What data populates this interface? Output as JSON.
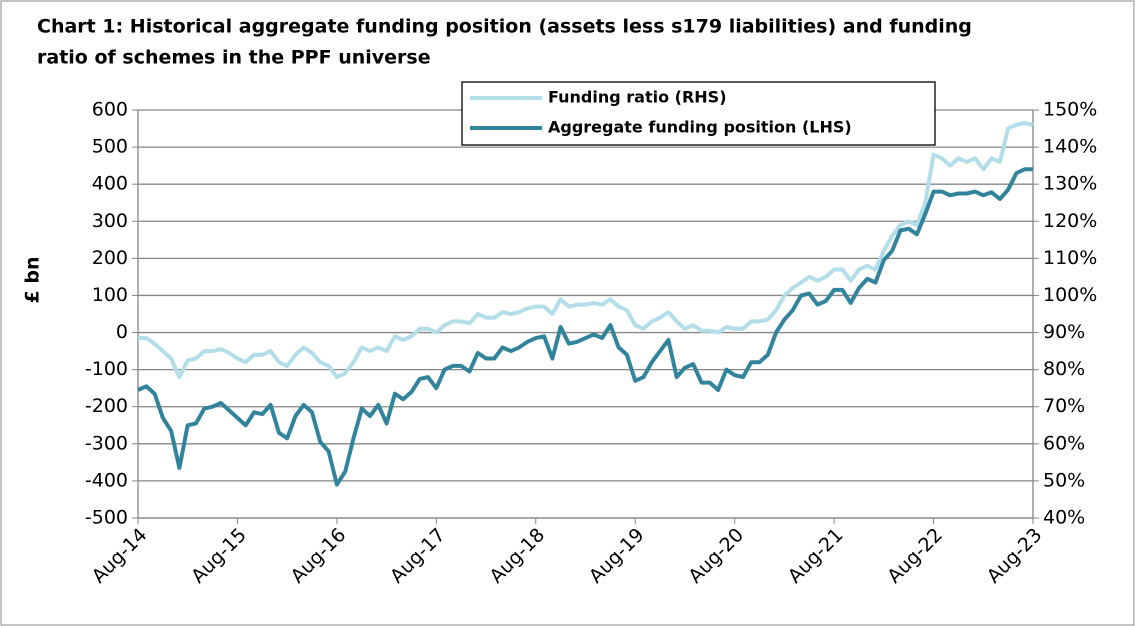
{
  "chart_data": {
    "type": "line",
    "title": [
      "Chart 1: Historical aggregate funding position (assets less s179 liabilities) and funding",
      "ratio of schemes in the PPF universe"
    ],
    "y_label": "£ bn",
    "legend": "upper center",
    "grid": true,
    "categories": [
      "Aug-14",
      null,
      null,
      null,
      null,
      null,
      null,
      null,
      null,
      null,
      null,
      null,
      "Aug-15",
      null,
      null,
      null,
      null,
      null,
      null,
      null,
      null,
      null,
      null,
      null,
      "Aug-16",
      null,
      null,
      null,
      null,
      null,
      null,
      null,
      null,
      null,
      null,
      null,
      "Aug-17",
      null,
      null,
      null,
      null,
      null,
      null,
      null,
      null,
      null,
      null,
      null,
      "Aug-18",
      null,
      null,
      null,
      null,
      null,
      null,
      null,
      null,
      null,
      null,
      null,
      "Aug-19",
      null,
      null,
      null,
      null,
      null,
      null,
      null,
      null,
      null,
      null,
      null,
      "Aug-20",
      null,
      null,
      null,
      null,
      null,
      null,
      null,
      null,
      null,
      null,
      null,
      "Aug-21",
      null,
      null,
      null,
      null,
      null,
      null,
      null,
      null,
      null,
      null,
      null,
      "Aug-22",
      null,
      null,
      null,
      null,
      null,
      null,
      null,
      null,
      null,
      null,
      null,
      "Aug-23"
    ],
    "ylim": [
      -500,
      600
    ],
    "yticks": [
      -500,
      -400,
      -300,
      -200,
      -100,
      0,
      100,
      200,
      300,
      400,
      500,
      600
    ],
    "y2lim": [
      40,
      150
    ],
    "y2ticks": [
      {
        "value": 40,
        "label": "40%"
      },
      {
        "value": 50,
        "label": "50%"
      },
      {
        "value": 60,
        "label": "60%"
      },
      {
        "value": 70,
        "label": "70%"
      },
      {
        "value": 80,
        "label": "80%"
      },
      {
        "value": 90,
        "label": "90%"
      },
      {
        "value": 100,
        "label": "100%"
      },
      {
        "value": 110,
        "label": "110%"
      },
      {
        "value": 120,
        "label": "120%"
      },
      {
        "value": 130,
        "label": "130%"
      },
      {
        "value": 140,
        "label": "140%"
      },
      {
        "value": 150,
        "label": "150%"
      }
    ],
    "series": [
      {
        "name": "Funding ratio (RHS)",
        "color": "#b3dde8",
        "axis": "y2",
        "values": [
          88.5,
          88.5,
          87,
          85,
          83,
          78,
          82.5,
          83,
          85,
          85,
          85.5,
          84.5,
          83,
          82,
          84,
          84,
          85,
          82,
          81,
          84,
          86,
          84.5,
          82,
          81,
          78,
          79,
          82,
          86,
          85,
          86,
          85,
          89,
          88,
          89,
          91,
          91,
          90,
          92,
          93,
          93,
          92.5,
          95,
          94,
          94,
          95.5,
          95,
          95.5,
          96.5,
          97,
          97,
          95,
          99,
          97,
          97.5,
          97.5,
          98,
          97.5,
          99,
          97,
          96,
          92,
          91,
          93,
          94,
          95.5,
          93,
          91,
          92,
          90.5,
          90.5,
          90,
          91.5,
          91,
          91,
          93,
          93,
          93.5,
          96,
          100,
          102,
          103.5,
          105,
          104,
          105,
          107,
          107,
          104,
          107,
          108,
          107,
          112,
          116,
          119,
          120,
          119,
          125,
          138,
          137,
          135,
          137,
          136,
          137,
          134,
          137,
          136,
          145,
          146,
          146.5,
          146
        ]
      },
      {
        "name": "Aggregate funding position (LHS)",
        "color": "#31849b",
        "values": [
          -155,
          -145,
          -165,
          -230,
          -265,
          -365,
          -250,
          -245,
          -205,
          -200,
          -190,
          -210,
          -230,
          -250,
          -215,
          -220,
          -195,
          -270,
          -285,
          -225,
          -195,
          -215,
          -295,
          -320,
          -410,
          -375,
          -285,
          -205,
          -225,
          -195,
          -245,
          -165,
          -180,
          -160,
          -125,
          -120,
          -150,
          -100,
          -90,
          -90,
          -105,
          -55,
          -70,
          -70,
          -40,
          -50,
          -40,
          -25,
          -15,
          -10,
          -70,
          15,
          -30,
          -25,
          -15,
          -5,
          -15,
          20,
          -40,
          -60,
          -130,
          -120,
          -80,
          -50,
          -20,
          -120,
          -95,
          -85,
          -135,
          -135,
          -155,
          -100,
          -115,
          -120,
          -80,
          -80,
          -60,
          0,
          35,
          60,
          100,
          105,
          75,
          85,
          115,
          115,
          80,
          120,
          145,
          135,
          195,
          220,
          275,
          280,
          265,
          320,
          380,
          380,
          370,
          375,
          375,
          380,
          370,
          378,
          360,
          385,
          430,
          440,
          440
        ]
      }
    ]
  }
}
